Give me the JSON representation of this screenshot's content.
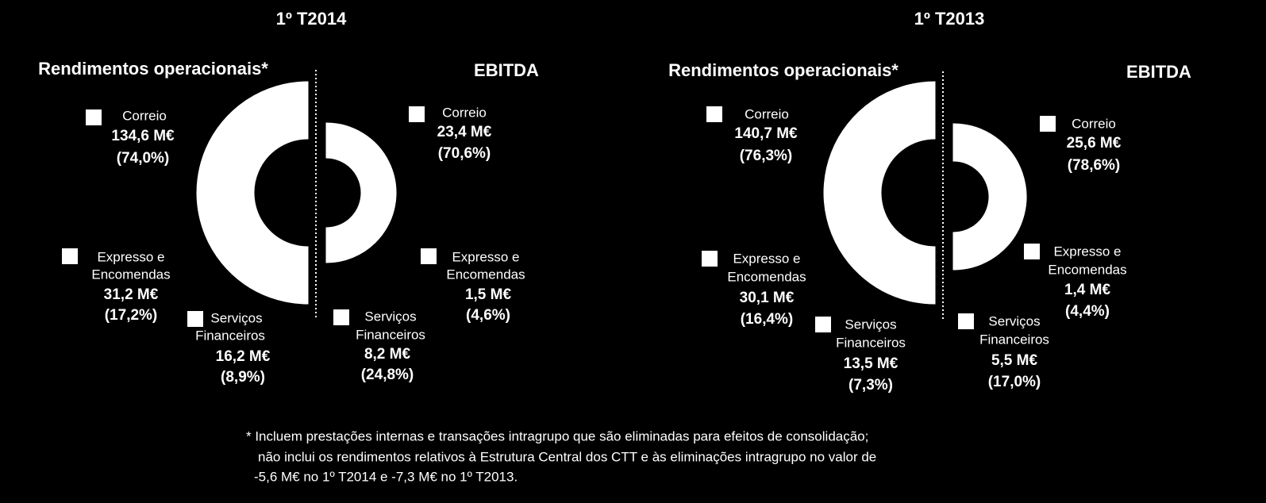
{
  "periods": [
    "1º T2014",
    "1º T2013"
  ],
  "footnote": [
    "*  Incluem prestações internas e transações intragrupo que são eliminadas para efeitos de consolidação;",
    "não inclui  os rendimentos relativos à Estrutura Central dos CTT  e às eliminações intragrupo no valor de",
    "-5,6 M€ no 1º T2014 e -7,3 M€ no 1º T2013."
  ],
  "chart_data": [
    {
      "type": "pie",
      "title": "Rendimentos operacionais*",
      "half": "left",
      "color": "#ffffff",
      "categories": [
        [
          "Correio"
        ],
        [
          "Expresso e",
          "Encomendas"
        ],
        [
          "Serviços",
          "Financeiros"
        ]
      ],
      "values": [
        74.0,
        17.2,
        8.9
      ],
      "value_labels": [
        "(74,0%)",
        "(17,2%)",
        "(8,9%)"
      ],
      "amounts": [
        134.6,
        31.2,
        16.2
      ],
      "amount_labels": [
        "134,6 M€",
        "31,2 M€",
        "16,2 M€"
      ]
    },
    {
      "type": "pie",
      "title": "EBITDA",
      "half": "right",
      "color": "#ffffff",
      "categories": [
        [
          "Correio"
        ],
        [
          "Expresso e",
          "Encomendas"
        ],
        [
          "Serviços",
          "Financeiros"
        ]
      ],
      "values": [
        70.6,
        4.6,
        24.8
      ],
      "value_labels": [
        "(70,6%)",
        "(4,6%)",
        "(24,8%)"
      ],
      "amounts": [
        23.4,
        1.5,
        8.2
      ],
      "amount_labels": [
        "23,4 M€",
        "1,5 M€",
        "8,2 M€"
      ]
    },
    {
      "type": "pie",
      "title": "Rendimentos operacionais*",
      "half": "left",
      "color": "#ffffff",
      "categories": [
        [
          "Correio"
        ],
        [
          "Expresso e",
          "Encomendas"
        ],
        [
          "Serviços",
          "Financeiros"
        ]
      ],
      "values": [
        76.3,
        16.4,
        7.3
      ],
      "value_labels": [
        "(76,3%)",
        "(16,4%)",
        "(7,3%)"
      ],
      "amounts": [
        140.7,
        30.1,
        13.5
      ],
      "amount_labels": [
        "140,7 M€",
        "30,1 M€",
        "13,5 M€"
      ]
    },
    {
      "type": "pie",
      "title": "EBITDA",
      "half": "right",
      "color": "#ffffff",
      "categories": [
        [
          "Correio"
        ],
        [
          "Expresso e",
          "Encomendas"
        ],
        [
          "Serviços",
          "Financeiros"
        ]
      ],
      "values": [
        78.6,
        4.4,
        17.0
      ],
      "value_labels": [
        "(78,6%)",
        "(4,4%)",
        "(17,0%)"
      ],
      "amounts": [
        25.6,
        1.4,
        5.5
      ],
      "amount_labels": [
        "25,6 M€",
        "1,4 M€",
        "5,5 M€"
      ]
    }
  ]
}
